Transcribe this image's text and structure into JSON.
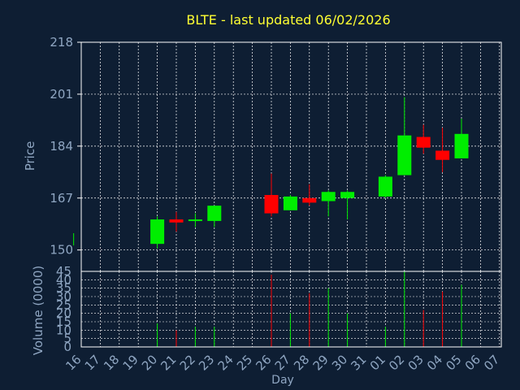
{
  "title": "BLTE - last updated 06/02/2026",
  "colors": {
    "background": "#0e1e33",
    "title": "#ffff33",
    "axis_text": "#8fa6c2",
    "frame": "#ffffff",
    "grid": "#ffffff",
    "up": "#00ee00",
    "down": "#ff0000"
  },
  "chart_data": [
    {
      "type": "candlestick",
      "ylabel": "Price",
      "xlabel": "",
      "ylim": [
        143,
        218
      ],
      "yticks": [
        150,
        167,
        184,
        201,
        218
      ],
      "x_index_range": [
        0,
        22
      ],
      "grid": true,
      "candles": [
        {
          "i": -0.4,
          "open": 151.5,
          "close": 155.5,
          "high": 155.5,
          "low": 151.5
        },
        {
          "i": 4,
          "open": 152,
          "close": 160,
          "high": 161,
          "low": 150.5
        },
        {
          "i": 5,
          "open": 160,
          "close": 159,
          "high": 162.5,
          "low": 156
        },
        {
          "i": 6,
          "open": 159.5,
          "close": 160,
          "high": 162,
          "low": 157.5
        },
        {
          "i": 7,
          "open": 159.5,
          "close": 164.5,
          "high": 164.5,
          "low": 157.5
        },
        {
          "i": 10,
          "open": 168,
          "close": 162,
          "high": 175,
          "low": 161
        },
        {
          "i": 11,
          "open": 163,
          "close": 167.5,
          "high": 168,
          "low": 163
        },
        {
          "i": 12,
          "open": 167,
          "close": 165.5,
          "high": 171.5,
          "low": 164.5
        },
        {
          "i": 13,
          "open": 166,
          "close": 169,
          "high": 169.5,
          "low": 161
        },
        {
          "i": 14,
          "open": 167,
          "close": 169,
          "high": 169.5,
          "low": 160
        },
        {
          "i": 16,
          "open": 167.5,
          "close": 174,
          "high": 174.5,
          "low": 167
        },
        {
          "i": 17,
          "open": 174.5,
          "close": 187.5,
          "high": 200,
          "low": 174.5
        },
        {
          "i": 18,
          "open": 187,
          "close": 183.5,
          "high": 191,
          "low": 181.5
        },
        {
          "i": 19,
          "open": 182.5,
          "close": 179.5,
          "high": 190,
          "low": 175.5
        },
        {
          "i": 20,
          "open": 180,
          "close": 188,
          "high": 193,
          "low": 180
        }
      ]
    },
    {
      "type": "bar",
      "ylabel": "Volume (0000)",
      "xlabel": "Day",
      "categories": [
        "16",
        "17",
        "18",
        "19",
        "20",
        "21",
        "22",
        "23",
        "24",
        "25",
        "26",
        "27",
        "28",
        "29",
        "30",
        "31",
        "01",
        "02",
        "03",
        "04",
        "05",
        "06",
        "07"
      ],
      "ylim": [
        0,
        45
      ],
      "yticks": [
        0,
        5,
        10,
        15,
        20,
        25,
        30,
        35,
        40,
        45
      ],
      "grid": true,
      "bars": [
        {
          "i": 4,
          "value": 14,
          "dir": "up"
        },
        {
          "i": 5,
          "value": 10,
          "dir": "down"
        },
        {
          "i": 6,
          "value": 12,
          "dir": "up"
        },
        {
          "i": 7,
          "value": 12,
          "dir": "up"
        },
        {
          "i": 10,
          "value": 43,
          "dir": "down"
        },
        {
          "i": 11,
          "value": 20,
          "dir": "up"
        },
        {
          "i": 12,
          "value": 32,
          "dir": "down"
        },
        {
          "i": 13,
          "value": 35,
          "dir": "up"
        },
        {
          "i": 14,
          "value": 20,
          "dir": "up"
        },
        {
          "i": 16,
          "value": 12,
          "dir": "up"
        },
        {
          "i": 17,
          "value": 45,
          "dir": "up"
        },
        {
          "i": 18,
          "value": 22,
          "dir": "down"
        },
        {
          "i": 19,
          "value": 33,
          "dir": "down"
        },
        {
          "i": 20,
          "value": 37,
          "dir": "up"
        }
      ]
    }
  ]
}
